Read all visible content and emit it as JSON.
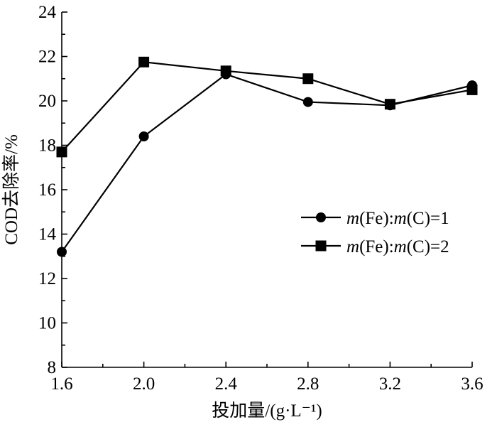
{
  "chart_data": {
    "type": "line",
    "xlabel": "投加量/(g·L⁻¹)",
    "ylabel": "COD去除率/%",
    "xlim": [
      1.6,
      3.6
    ],
    "ylim": [
      8,
      24
    ],
    "xticks": [
      "1.6",
      "2.0",
      "2.4",
      "2.8",
      "3.2",
      "3.6"
    ],
    "yticks": [
      "8",
      "10",
      "12",
      "14",
      "16",
      "18",
      "20",
      "22",
      "24"
    ],
    "x": [
      1.6,
      2.0,
      2.4,
      2.8,
      3.2,
      3.6
    ],
    "legend_position": "right",
    "grid": false,
    "series": [
      {
        "name": "m(Fe):m(C)=1",
        "label_html": [
          "m",
          "(Fe):",
          "m",
          "(C)=1"
        ],
        "marker": "circle",
        "values": [
          13.2,
          18.4,
          21.2,
          19.95,
          19.8,
          20.7
        ]
      },
      {
        "name": "m(Fe):m(C)=2",
        "label_html": [
          "m",
          "(Fe):",
          "m",
          "(C)=2"
        ],
        "marker": "square",
        "values": [
          17.7,
          21.75,
          21.35,
          21.0,
          19.85,
          20.5
        ]
      }
    ]
  }
}
